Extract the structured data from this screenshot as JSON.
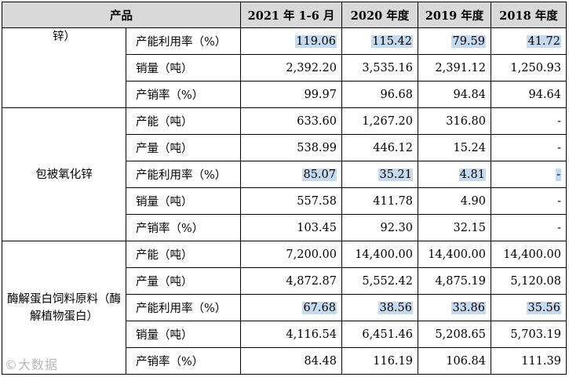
{
  "header": {
    "product": "产品",
    "col1": "2021 年 1-6 月",
    "col2": "2020 年度",
    "col3": "2019 年度",
    "col4": "2018 年度"
  },
  "group1": {
    "product": "锌）",
    "rows": [
      {
        "label": "产能利用率（%）",
        "v": [
          "119.06",
          "115.42",
          "79.59",
          "41.72"
        ]
      },
      {
        "label": "销量（吨）",
        "v": [
          "2,392.20",
          "3,535.16",
          "2,391.12",
          "1,250.93"
        ]
      },
      {
        "label": "产销率（%）",
        "v": [
          "99.97",
          "96.68",
          "94.84",
          "94.64"
        ]
      }
    ]
  },
  "group2": {
    "product": "包被氧化锌",
    "rows": [
      {
        "label": "产能（吨）",
        "v": [
          "633.60",
          "1,267.20",
          "316.80",
          "-"
        ]
      },
      {
        "label": "产量（吨）",
        "v": [
          "538.99",
          "446.12",
          "15.24",
          "-"
        ]
      },
      {
        "label": "产能利用率（%）",
        "v": [
          "85.07",
          "35.21",
          "4.81",
          "-"
        ]
      },
      {
        "label": "销量（吨）",
        "v": [
          "557.58",
          "411.78",
          "4.90",
          "-"
        ]
      },
      {
        "label": "产销率（%）",
        "v": [
          "103.45",
          "92.30",
          "32.15",
          "-"
        ]
      }
    ]
  },
  "group3": {
    "product": "酶解蛋白饲料原料（酶解植物蛋白）",
    "rows": [
      {
        "label": "产能（吨）",
        "v": [
          "7,200.00",
          "14,400.00",
          "14,400.00",
          "14,400.00"
        ]
      },
      {
        "label": "产量（吨）",
        "v": [
          "4,872.87",
          "5,552.42",
          "4,875.19",
          "5,120.08"
        ]
      },
      {
        "label": "产能利用率（%）",
        "v": [
          "67.68",
          "38.56",
          "33.86",
          "35.56"
        ]
      },
      {
        "label": "销量（吨）",
        "v": [
          "4,116.54",
          "6,451.46",
          "5,208.65",
          "5,703.19"
        ]
      },
      {
        "label": "产销率（%）",
        "v": [
          "84.48",
          "116.19",
          "106.84",
          "111.39"
        ]
      }
    ]
  },
  "watermark": "©大数据",
  "colors": {
    "header_bg": "#d9d9d9",
    "highlight": "#c5d9f1"
  }
}
